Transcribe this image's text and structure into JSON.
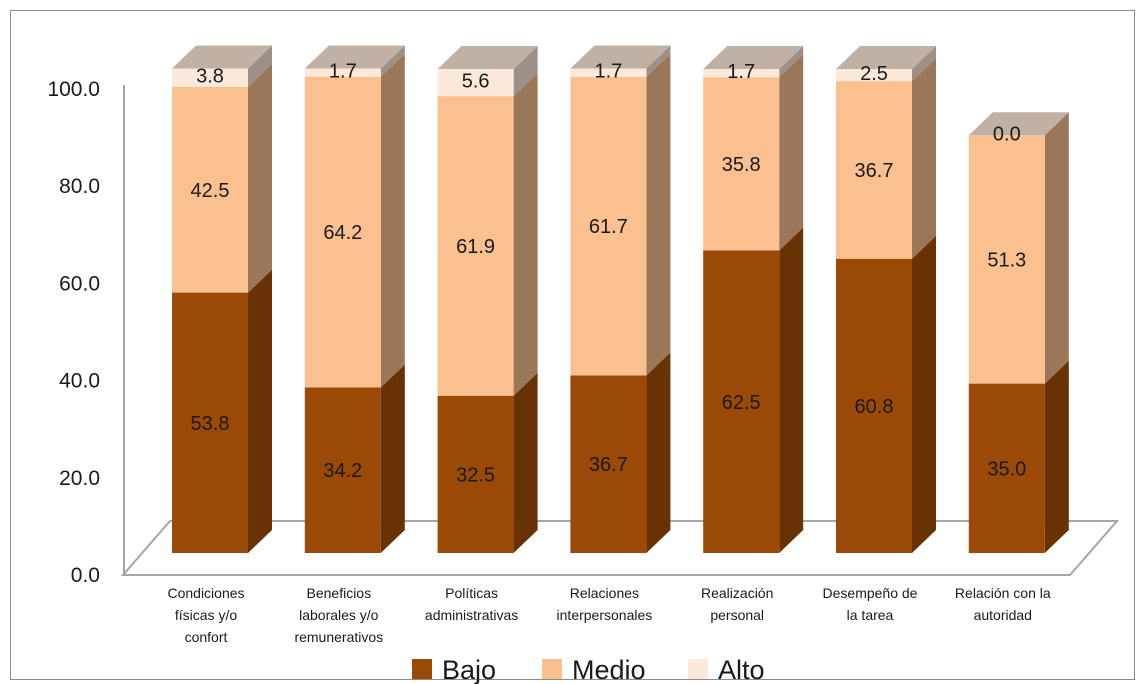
{
  "chart_data": {
    "type": "bar",
    "stacked": true,
    "three_d": true,
    "categories": [
      "Condiciones físicas y/o confort",
      "Beneficios laborales y/o remunerativos",
      "Políticas administrativas",
      "Relaciones interpersonales",
      "Realización personal",
      "Desempeño de la tarea",
      "Relación con la autoridad"
    ],
    "category_lines": [
      [
        "Condiciones",
        "físicas y/o",
        "confort"
      ],
      [
        "Beneficios",
        "laborales y/o",
        "remunerativos"
      ],
      [
        "Políticas",
        "administrativas"
      ],
      [
        "Relaciones",
        "interpersonales"
      ],
      [
        "Realización",
        "personal"
      ],
      [
        "Desempeño de",
        "la tarea"
      ],
      [
        "Relación con la",
        "autoridad"
      ]
    ],
    "series": [
      {
        "name": "Bajo",
        "color": "#9a4a06",
        "values": [
          53.8,
          34.2,
          32.5,
          36.7,
          62.5,
          60.8,
          35.0
        ]
      },
      {
        "name": "Medio",
        "color": "#fac090",
        "values": [
          42.5,
          64.2,
          61.9,
          61.7,
          35.8,
          36.7,
          51.3
        ]
      },
      {
        "name": "Alto",
        "color": "#fde9d9",
        "values": [
          3.8,
          1.7,
          5.6,
          1.7,
          1.7,
          2.5,
          0.0
        ]
      }
    ],
    "value_labels": [
      [
        "53.8",
        "34.2",
        "32.5",
        "36.7",
        "62.5",
        "60.8",
        "35.0"
      ],
      [
        "42.5",
        "64.2",
        "61.9",
        "61.7",
        "35.8",
        "36.7",
        "51.3"
      ],
      [
        "3.8",
        "1.7",
        "5.6",
        "1.7",
        "1.7",
        "2.5",
        "0.0"
      ]
    ],
    "yticks": [
      "0.0",
      "20.0",
      "40.0",
      "60.0",
      "80.0",
      "100.0"
    ],
    "ylim": [
      0,
      100
    ],
    "title": "",
    "xlabel": "",
    "ylabel": "",
    "legend_position": "bottom",
    "grid": false,
    "top_face_color": "#bfb1a5",
    "axis_color": "#a6a6a6"
  }
}
